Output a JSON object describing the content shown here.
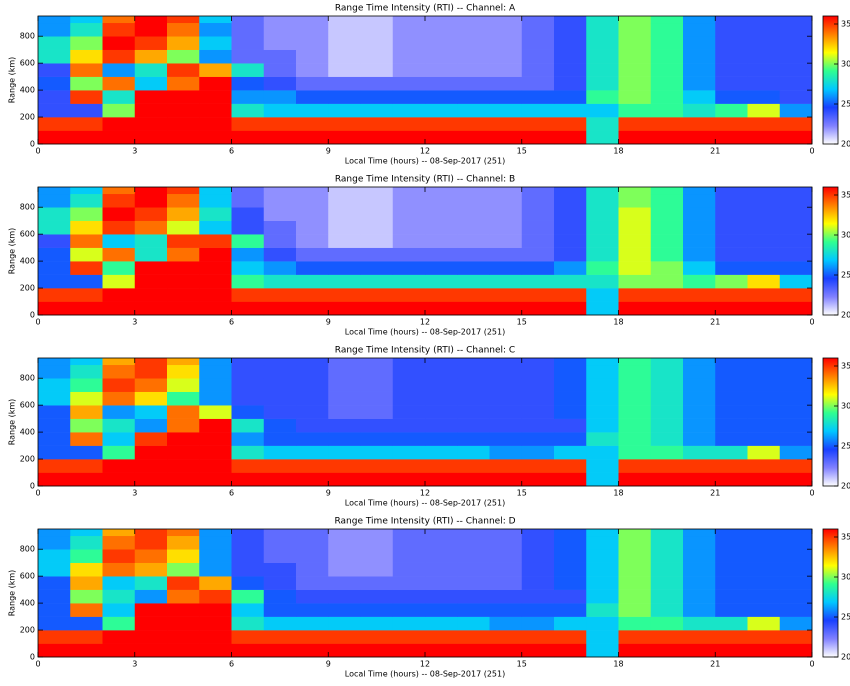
{
  "chart_data": [
    {
      "type": "heatmap",
      "title": "Range Time Intensity (RTI) -- Channel: A",
      "xlabel": "Local Time (hours) -- 08-Sep-2017 (251)",
      "ylabel": "Range (km)",
      "xlim": [
        0,
        24
      ],
      "xticks": [
        0,
        3,
        6,
        9,
        12,
        15,
        18,
        21,
        {
          "value": 24,
          "label": "0"
        }
      ],
      "ylim": [
        0,
        950
      ],
      "yticks": [
        0,
        200,
        400,
        600,
        800
      ],
      "zlim": [
        20,
        36
      ],
      "zticks": [
        20,
        25,
        30,
        35
      ],
      "colormap": [
        "#ffffff",
        "#8080ff",
        "#1840ff",
        "#00c8ff",
        "#30ff90",
        "#ffff00",
        "#ff8000",
        "#ff0000"
      ],
      "x_bins": [
        0,
        1,
        2,
        3,
        4,
        5,
        6,
        7,
        8,
        9,
        10,
        11,
        12,
        13,
        14,
        15,
        16,
        17,
        18,
        19,
        20,
        21,
        22,
        23,
        24
      ],
      "y_bins": [
        0,
        100,
        200,
        300,
        400,
        500,
        600,
        700,
        800,
        900,
        950
      ],
      "z": [
        [
          36,
          36,
          36,
          36,
          36,
          36,
          36,
          36,
          36,
          36,
          36,
          36,
          36,
          36,
          36,
          36,
          36,
          28,
          36,
          36,
          36,
          36,
          36,
          36
        ],
        [
          35,
          35,
          36,
          36,
          36,
          36,
          35,
          35,
          35,
          35,
          35,
          35,
          35,
          35,
          35,
          35,
          35,
          28,
          35,
          35,
          35,
          35,
          35,
          35
        ],
        [
          24,
          24,
          30,
          36,
          36,
          36,
          28,
          27,
          27,
          27,
          27,
          27,
          27,
          27,
          27,
          27,
          27,
          27,
          29,
          29,
          28,
          29,
          31,
          26
        ],
        [
          24,
          35,
          28,
          36,
          36,
          36,
          26,
          26,
          25,
          25,
          25,
          25,
          25,
          25,
          25,
          25,
          25,
          29,
          30,
          29,
          27,
          25,
          25,
          24
        ],
        [
          25,
          30,
          34,
          27,
          34,
          36,
          25,
          24,
          23,
          23,
          23,
          23,
          23,
          23,
          23,
          23,
          24,
          28,
          30,
          29,
          26,
          24,
          24,
          24
        ],
        [
          24,
          34,
          26,
          28,
          35,
          33,
          28,
          23,
          22,
          21,
          21,
          22,
          22,
          22,
          22,
          23,
          24,
          28,
          30,
          29,
          26,
          24,
          24,
          24
        ],
        [
          28,
          32,
          35,
          33,
          30,
          26,
          23,
          23,
          22,
          21,
          21,
          22,
          22,
          22,
          22,
          23,
          24,
          28,
          30,
          29,
          26,
          24,
          24,
          24
        ],
        [
          28,
          30,
          36,
          35,
          33,
          27,
          23,
          22,
          22,
          21,
          21,
          22,
          22,
          22,
          22,
          23,
          24,
          28,
          30,
          29,
          26,
          24,
          24,
          24
        ],
        [
          26,
          28,
          35,
          36,
          34,
          26,
          23,
          22,
          22,
          21,
          21,
          22,
          22,
          22,
          22,
          23,
          24,
          28,
          30,
          29,
          26,
          24,
          24,
          24
        ],
        [
          26,
          27,
          34,
          36,
          35,
          27,
          23,
          22,
          22,
          21,
          21,
          22,
          22,
          22,
          22,
          23,
          24,
          28,
          30,
          29,
          26,
          24,
          24,
          24
        ]
      ]
    },
    {
      "type": "heatmap",
      "title": "Range Time Intensity (RTI) -- Channel: B",
      "xlabel": "Local Time (hours) -- 08-Sep-2017 (251)",
      "ylabel": "Range (km)",
      "xlim": [
        0,
        24
      ],
      "xticks": [
        0,
        3,
        6,
        9,
        12,
        15,
        18,
        21,
        {
          "value": 24,
          "label": "0"
        }
      ],
      "ylim": [
        0,
        950
      ],
      "yticks": [
        0,
        200,
        400,
        600,
        800
      ],
      "zlim": [
        20,
        36
      ],
      "zticks": [
        20,
        25,
        30,
        35
      ],
      "colormap": [
        "#ffffff",
        "#8080ff",
        "#1840ff",
        "#00c8ff",
        "#30ff90",
        "#ffff00",
        "#ff8000",
        "#ff0000"
      ],
      "x_bins": [
        0,
        1,
        2,
        3,
        4,
        5,
        6,
        7,
        8,
        9,
        10,
        11,
        12,
        13,
        14,
        15,
        16,
        17,
        18,
        19,
        20,
        21,
        22,
        23,
        24
      ],
      "y_bins": [
        0,
        100,
        200,
        300,
        400,
        500,
        600,
        700,
        800,
        900,
        950
      ],
      "z": [
        [
          36,
          36,
          36,
          36,
          36,
          36,
          36,
          36,
          36,
          36,
          36,
          36,
          36,
          36,
          36,
          36,
          36,
          27,
          36,
          36,
          36,
          36,
          36,
          36
        ],
        [
          35,
          35,
          36,
          36,
          36,
          36,
          35,
          35,
          35,
          35,
          35,
          35,
          35,
          35,
          35,
          35,
          35,
          27,
          35,
          35,
          35,
          35,
          35,
          35
        ],
        [
          25,
          25,
          31,
          36,
          36,
          36,
          29,
          28,
          28,
          28,
          28,
          28,
          28,
          28,
          28,
          28,
          28,
          28,
          30,
          30,
          29,
          30,
          32,
          27
        ],
        [
          25,
          35,
          29,
          36,
          36,
          36,
          27,
          26,
          25,
          25,
          25,
          25,
          25,
          25,
          25,
          25,
          26,
          29,
          31,
          30,
          27,
          25,
          25,
          25
        ],
        [
          25,
          31,
          34,
          28,
          34,
          36,
          26,
          24,
          23,
          23,
          23,
          23,
          23,
          23,
          23,
          23,
          24,
          28,
          31,
          29,
          26,
          24,
          24,
          24
        ],
        [
          24,
          34,
          27,
          28,
          35,
          35,
          29,
          23,
          22,
          21,
          21,
          22,
          22,
          22,
          22,
          23,
          24,
          28,
          31,
          29,
          26,
          24,
          24,
          24
        ],
        [
          28,
          32,
          35,
          34,
          31,
          27,
          24,
          23,
          22,
          21,
          21,
          22,
          22,
          22,
          22,
          23,
          24,
          28,
          31,
          29,
          26,
          24,
          24,
          24
        ],
        [
          28,
          30,
          36,
          35,
          33,
          28,
          24,
          22,
          22,
          21,
          21,
          22,
          22,
          22,
          22,
          23,
          24,
          28,
          31,
          29,
          26,
          24,
          24,
          24
        ],
        [
          26,
          28,
          35,
          36,
          34,
          27,
          23,
          22,
          22,
          21,
          21,
          22,
          22,
          22,
          22,
          23,
          24,
          28,
          30,
          29,
          26,
          24,
          24,
          24
        ],
        [
          26,
          27,
          34,
          36,
          35,
          27,
          23,
          22,
          22,
          21,
          21,
          22,
          22,
          22,
          22,
          23,
          24,
          28,
          30,
          29,
          26,
          24,
          24,
          24
        ]
      ]
    },
    {
      "type": "heatmap",
      "title": "Range Time Intensity (RTI) -- Channel: C",
      "xlabel": "Local Time (hours) -- 08-Sep-2017 (251)",
      "ylabel": "Range (km)",
      "xlim": [
        0,
        24
      ],
      "xticks": [
        0,
        3,
        6,
        9,
        12,
        15,
        18,
        21,
        {
          "value": 24,
          "label": "0"
        }
      ],
      "ylim": [
        0,
        950
      ],
      "yticks": [
        0,
        200,
        400,
        600,
        800
      ],
      "zlim": [
        20,
        36
      ],
      "zticks": [
        20,
        25,
        30,
        35
      ],
      "colormap": [
        "#ffffff",
        "#8080ff",
        "#1840ff",
        "#00c8ff",
        "#30ff90",
        "#ffff00",
        "#ff8000",
        "#ff0000"
      ],
      "x_bins": [
        0,
        1,
        2,
        3,
        4,
        5,
        6,
        7,
        8,
        9,
        10,
        11,
        12,
        13,
        14,
        15,
        16,
        17,
        18,
        19,
        20,
        21,
        22,
        23,
        24
      ],
      "y_bins": [
        0,
        100,
        200,
        300,
        400,
        500,
        600,
        700,
        800,
        900,
        950
      ],
      "z": [
        [
          36,
          36,
          36,
          36,
          36,
          36,
          36,
          36,
          36,
          36,
          36,
          36,
          36,
          36,
          36,
          36,
          36,
          27,
          36,
          36,
          36,
          36,
          36,
          36
        ],
        [
          35,
          35,
          36,
          36,
          36,
          36,
          35,
          35,
          35,
          35,
          35,
          35,
          35,
          35,
          35,
          35,
          35,
          27,
          35,
          35,
          35,
          35,
          35,
          35
        ],
        [
          25,
          25,
          29,
          36,
          36,
          36,
          28,
          27,
          27,
          27,
          27,
          27,
          27,
          27,
          26,
          26,
          27,
          27,
          29,
          29,
          28,
          28,
          31,
          26
        ],
        [
          25,
          34,
          27,
          35,
          36,
          36,
          26,
          25,
          25,
          25,
          25,
          25,
          25,
          25,
          25,
          25,
          25,
          28,
          29,
          28,
          26,
          25,
          25,
          25
        ],
        [
          25,
          30,
          28,
          26,
          34,
          36,
          28,
          25,
          24,
          24,
          24,
          24,
          24,
          24,
          24,
          24,
          24,
          27,
          29,
          28,
          26,
          25,
          25,
          25
        ],
        [
          25,
          33,
          26,
          27,
          34,
          31,
          25,
          24,
          24,
          23,
          23,
          24,
          24,
          24,
          24,
          24,
          25,
          27,
          29,
          28,
          26,
          25,
          25,
          25
        ],
        [
          27,
          31,
          34,
          32,
          29,
          26,
          24,
          24,
          24,
          23,
          23,
          24,
          24,
          24,
          24,
          24,
          25,
          27,
          29,
          28,
          26,
          25,
          25,
          25
        ],
        [
          27,
          29,
          35,
          34,
          31,
          26,
          24,
          24,
          24,
          23,
          23,
          24,
          24,
          24,
          24,
          24,
          25,
          27,
          29,
          28,
          26,
          25,
          25,
          25
        ],
        [
          26,
          28,
          34,
          35,
          32,
          26,
          24,
          24,
          24,
          23,
          23,
          24,
          24,
          24,
          24,
          24,
          25,
          27,
          29,
          28,
          26,
          25,
          25,
          25
        ],
        [
          26,
          27,
          33,
          35,
          33,
          26,
          24,
          24,
          24,
          23,
          23,
          24,
          24,
          24,
          24,
          24,
          25,
          27,
          29,
          28,
          26,
          25,
          25,
          25
        ]
      ]
    },
    {
      "type": "heatmap",
      "title": "Range Time Intensity (RTI) -- Channel: D",
      "xlabel": "Local Time (hours) -- 08-Sep-2017 (251)",
      "ylabel": "Range (km)",
      "xlim": [
        0,
        24
      ],
      "xticks": [
        0,
        3,
        6,
        9,
        12,
        15,
        18,
        21,
        {
          "value": 24,
          "label": "0"
        }
      ],
      "ylim": [
        0,
        950
      ],
      "yticks": [
        0,
        200,
        400,
        600,
        800
      ],
      "zlim": [
        20,
        36
      ],
      "zticks": [
        20,
        25,
        30,
        35
      ],
      "colormap": [
        "#ffffff",
        "#8080ff",
        "#1840ff",
        "#00c8ff",
        "#30ff90",
        "#ffff00",
        "#ff8000",
        "#ff0000"
      ],
      "x_bins": [
        0,
        1,
        2,
        3,
        4,
        5,
        6,
        7,
        8,
        9,
        10,
        11,
        12,
        13,
        14,
        15,
        16,
        17,
        18,
        19,
        20,
        21,
        22,
        23,
        24
      ],
      "y_bins": [
        0,
        100,
        200,
        300,
        400,
        500,
        600,
        700,
        800,
        900,
        950
      ],
      "z": [
        [
          36,
          36,
          36,
          36,
          36,
          36,
          36,
          36,
          36,
          36,
          36,
          36,
          36,
          36,
          36,
          36,
          36,
          27,
          36,
          36,
          36,
          36,
          36,
          36
        ],
        [
          35,
          35,
          36,
          36,
          36,
          36,
          35,
          35,
          35,
          35,
          35,
          35,
          35,
          35,
          35,
          35,
          35,
          27,
          35,
          35,
          35,
          35,
          35,
          35
        ],
        [
          25,
          25,
          29,
          36,
          36,
          36,
          28,
          27,
          27,
          27,
          27,
          27,
          27,
          27,
          26,
          26,
          27,
          27,
          29,
          29,
          28,
          28,
          31,
          26
        ],
        [
          25,
          34,
          27,
          36,
          36,
          36,
          27,
          25,
          25,
          25,
          25,
          25,
          25,
          25,
          25,
          25,
          25,
          28,
          30,
          28,
          26,
          25,
          25,
          25
        ],
        [
          25,
          30,
          28,
          26,
          34,
          35,
          29,
          25,
          24,
          24,
          24,
          24,
          24,
          24,
          24,
          24,
          24,
          27,
          30,
          28,
          26,
          25,
          25,
          25
        ],
        [
          25,
          33,
          27,
          28,
          35,
          33,
          25,
          24,
          23,
          23,
          23,
          23,
          23,
          23,
          23,
          24,
          25,
          27,
          30,
          28,
          26,
          25,
          25,
          25
        ],
        [
          27,
          32,
          34,
          33,
          30,
          26,
          24,
          24,
          23,
          22,
          22,
          23,
          23,
          23,
          23,
          24,
          25,
          27,
          30,
          28,
          26,
          25,
          25,
          25
        ],
        [
          27,
          29,
          35,
          34,
          32,
          26,
          24,
          23,
          23,
          22,
          22,
          23,
          23,
          23,
          23,
          24,
          25,
          27,
          30,
          28,
          26,
          25,
          25,
          25
        ],
        [
          26,
          28,
          34,
          35,
          33,
          26,
          24,
          23,
          23,
          22,
          22,
          23,
          23,
          23,
          23,
          24,
          25,
          27,
          30,
          28,
          26,
          25,
          25,
          25
        ],
        [
          26,
          27,
          33,
          35,
          34,
          26,
          24,
          23,
          23,
          22,
          22,
          23,
          23,
          23,
          23,
          24,
          25,
          27,
          30,
          28,
          26,
          25,
          25,
          25
        ]
      ]
    }
  ]
}
